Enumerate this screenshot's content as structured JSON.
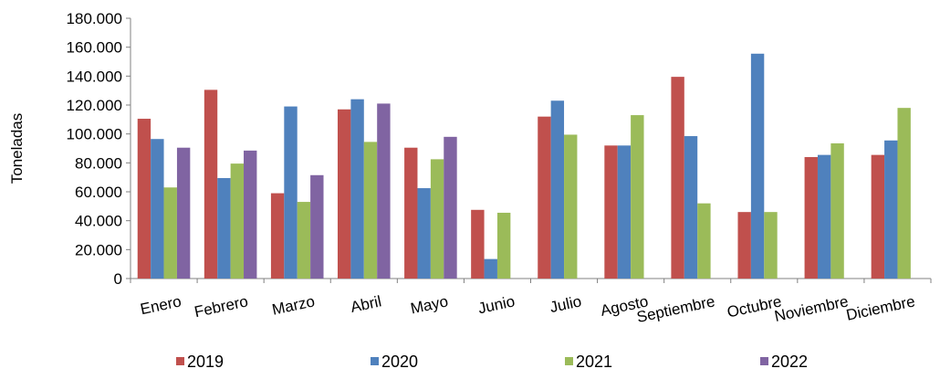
{
  "chart_data": {
    "type": "bar",
    "ylabel": "Toneladas",
    "xlabel": "",
    "ylim": [
      0,
      180000
    ],
    "yticks": [
      0,
      20000,
      40000,
      60000,
      80000,
      100000,
      120000,
      140000,
      160000,
      180000
    ],
    "ytick_labels": [
      "0",
      "20.000",
      "40.000",
      "60.000",
      "80.000",
      "100.000",
      "120.000",
      "140.000",
      "160.000",
      "180.000"
    ],
    "grid": false,
    "legend_position": "bottom",
    "categories": [
      "Enero",
      "Febrero",
      "Marzo",
      "Abril",
      "Mayo",
      "Junio",
      "Julio",
      "Agosto",
      "Septiembre",
      "Octubre",
      "Noviembre",
      "Diciembre"
    ],
    "series": [
      {
        "name": "2019",
        "color": "#C0504D",
        "values": [
          110500,
          130500,
          59000,
          117000,
          90500,
          47500,
          112000,
          92000,
          139500,
          46000,
          84000,
          85500
        ]
      },
      {
        "name": "2020",
        "color": "#4F81BD",
        "values": [
          96500,
          69500,
          119000,
          124000,
          62500,
          13500,
          123000,
          92000,
          98500,
          155500,
          85500,
          95500
        ]
      },
      {
        "name": "2021",
        "color": "#9BBB59",
        "values": [
          63000,
          79500,
          53000,
          94500,
          82500,
          45500,
          99500,
          113000,
          52000,
          46000,
          93500,
          118000
        ]
      },
      {
        "name": "2022",
        "color": "#8064A2",
        "values": [
          90500,
          88500,
          71500,
          121000,
          98000,
          null,
          null,
          null,
          null,
          null,
          null,
          null
        ]
      }
    ]
  }
}
